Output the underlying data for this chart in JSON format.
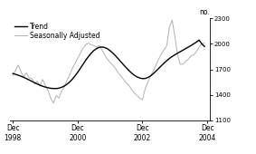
{
  "ylabel_right": "no.",
  "ylim": [
    1100,
    2300
  ],
  "yticks": [
    1100,
    1400,
    1700,
    2000,
    2300
  ],
  "xtick_positions": [
    0,
    24,
    48,
    72
  ],
  "xtick_labels": [
    "Dec\n1998",
    "Dec\n2000",
    "Dec\n2002",
    "Dec\n2004"
  ],
  "legend_entries": [
    "Trend",
    "Seasonally Adjusted"
  ],
  "trend_color": "#000000",
  "sa_color": "#b0b0b0",
  "background_color": "#ffffff",
  "trend_lw": 1.0,
  "sa_lw": 0.7,
  "trend_data": [
    1650,
    1640,
    1630,
    1618,
    1605,
    1590,
    1574,
    1558,
    1542,
    1527,
    1513,
    1500,
    1490,
    1482,
    1476,
    1473,
    1473,
    1477,
    1487,
    1502,
    1523,
    1550,
    1583,
    1622,
    1665,
    1712,
    1760,
    1808,
    1852,
    1890,
    1922,
    1945,
    1959,
    1963,
    1957,
    1942,
    1920,
    1892,
    1860,
    1825,
    1789,
    1753,
    1718,
    1685,
    1655,
    1630,
    1610,
    1597,
    1590,
    1592,
    1603,
    1622,
    1648,
    1678,
    1710,
    1742,
    1773,
    1802,
    1828,
    1851,
    1871,
    1890,
    1908,
    1926,
    1944,
    1962,
    1981,
    2001,
    2022,
    2045,
    2000,
    1970
  ],
  "sa_data": [
    1630,
    1690,
    1750,
    1670,
    1610,
    1660,
    1600,
    1590,
    1530,
    1560,
    1500,
    1580,
    1510,
    1450,
    1360,
    1300,
    1390,
    1360,
    1440,
    1490,
    1570,
    1630,
    1710,
    1770,
    1830,
    1890,
    1950,
    1990,
    2010,
    1990,
    1980,
    1960,
    1980,
    1930,
    1870,
    1820,
    1780,
    1750,
    1710,
    1660,
    1620,
    1580,
    1540,
    1510,
    1460,
    1420,
    1390,
    1360,
    1340,
    1470,
    1550,
    1620,
    1680,
    1750,
    1820,
    1880,
    1930,
    1980,
    2200,
    2280,
    2090,
    1870,
    1760,
    1760,
    1790,
    1820,
    1860,
    1870,
    1910,
    1960,
    2000,
    2010
  ]
}
